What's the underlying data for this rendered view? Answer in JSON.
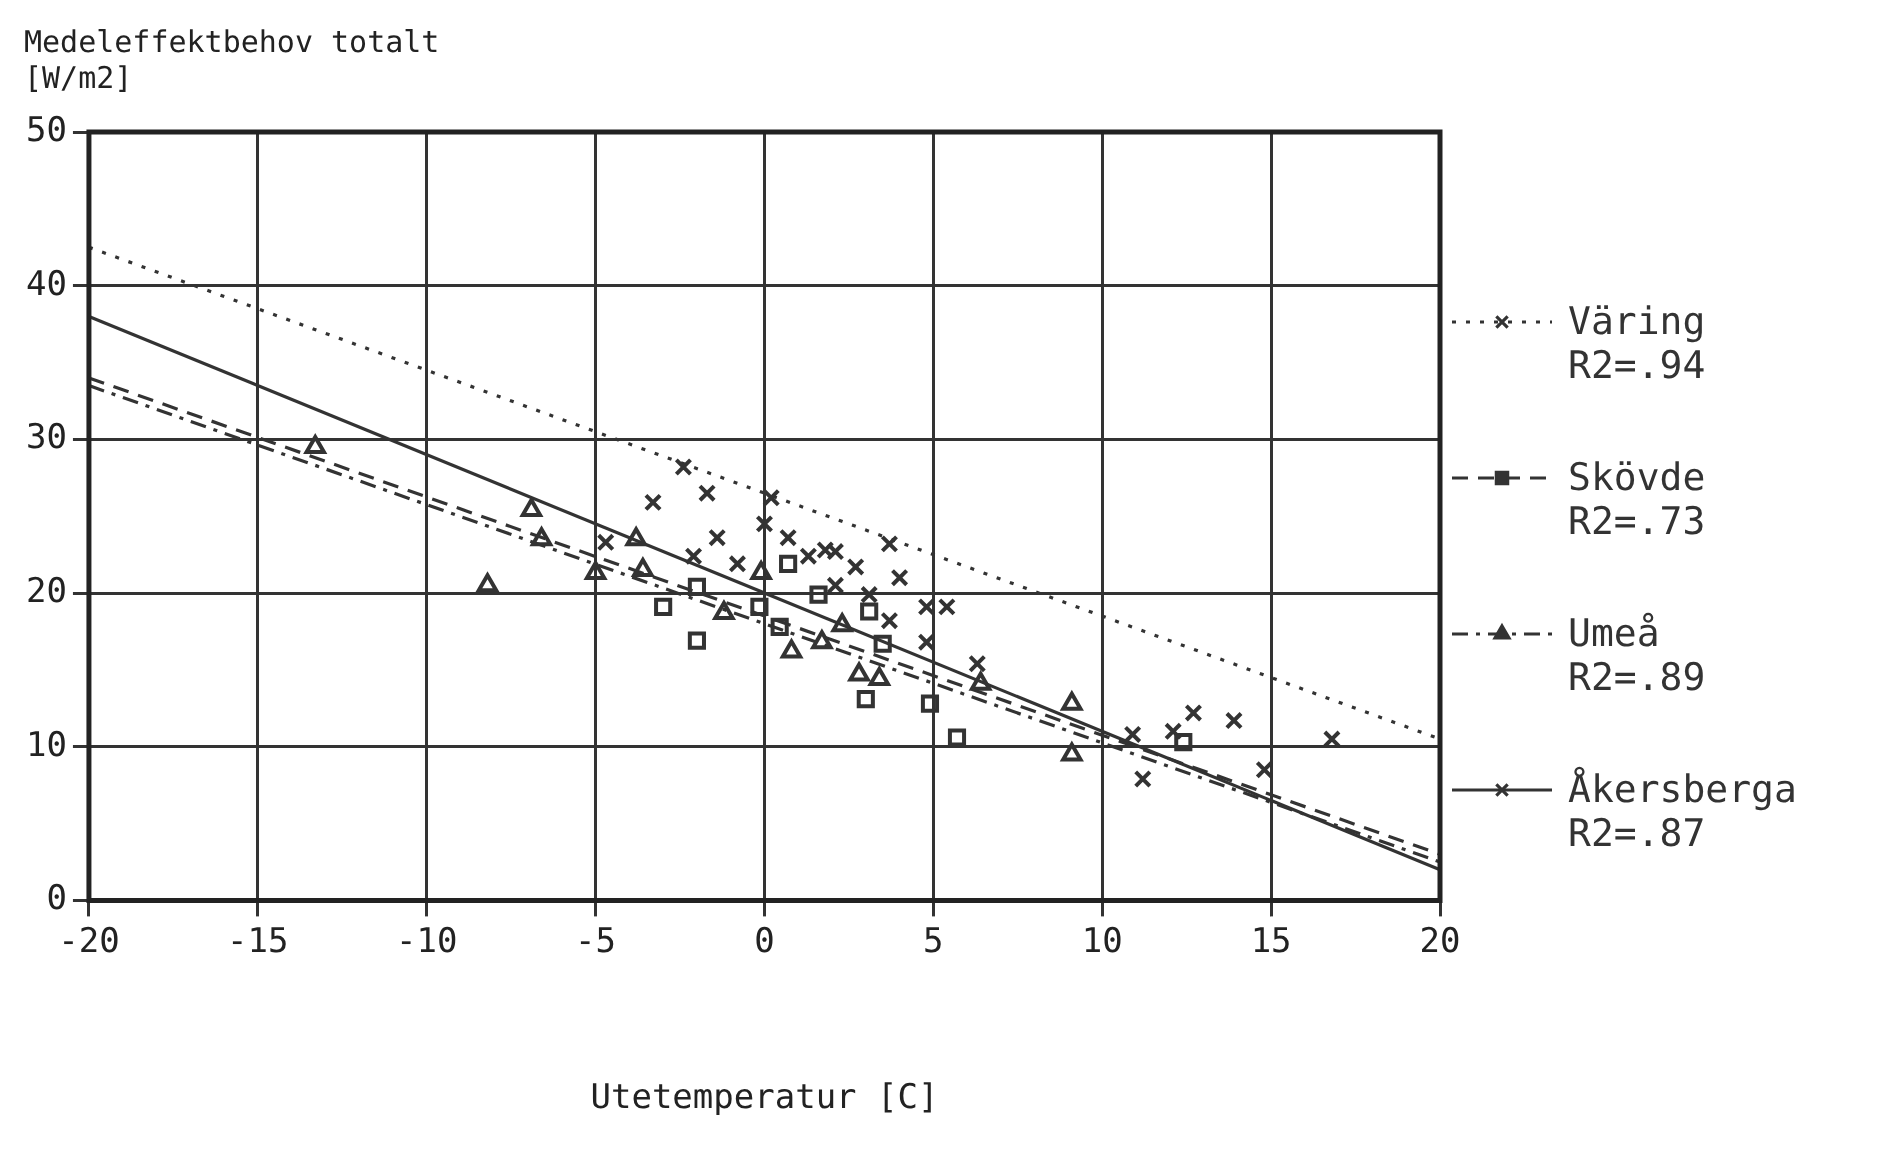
{
  "chart_data": {
    "type": "scatter",
    "ylabel": "Medeleffektbehov totalt [W/m2]",
    "xlabel": "Utetemperatur [C]",
    "xlim": [
      -20,
      20
    ],
    "xticks": [
      -20,
      -15,
      -10,
      -5,
      0,
      5,
      10,
      15,
      20
    ],
    "ylim": [
      0,
      50
    ],
    "yticks": [
      0,
      10,
      20,
      30,
      40,
      50
    ],
    "grid": true,
    "legend": "right",
    "series": [
      {
        "type": "scatter",
        "marker": "cross",
        "color": "#333333",
        "x": [
          -2.4,
          -1.7,
          -3.3,
          0.2,
          0,
          -1.4,
          0.7,
          1.8,
          1.3,
          2.1,
          3.7,
          2.7,
          -0.8,
          4.0,
          4.8,
          5.4,
          3.7,
          4.8,
          6.3,
          12.7,
          13.9,
          16.8,
          14.8,
          11.2
        ],
        "values": [
          28.2,
          26.5,
          25.9,
          26.2,
          24.5,
          23.6,
          23.6,
          22.8,
          22.4,
          22.7,
          23.2,
          21.7,
          21.9,
          21.0,
          19.1,
          19.1,
          18.2,
          16.8,
          15.4,
          12.2,
          11.7,
          10.5,
          8.5,
          7.9
        ]
      },
      {
        "type": "scatter",
        "marker": "square",
        "color": "#333333",
        "x": [
          0.7,
          -3.0,
          -2.0,
          -0.15,
          0.45,
          1.6,
          3.1,
          3.5,
          3.0,
          4.9,
          5.7,
          -2.0,
          12.4
        ],
        "values": [
          21.9,
          19.1,
          16.9,
          19.1,
          17.8,
          19.9,
          18.8,
          16.7,
          13.1,
          12.8,
          10.6,
          20.4,
          10.3
        ]
      },
      {
        "type": "scatter",
        "marker": "triangle",
        "color": "#333333",
        "x": [
          -6.9,
          -6.6,
          -8.2,
          -13.3,
          -5.0,
          -3.6,
          -3.8,
          -1.2,
          -0.1,
          0.8,
          1.7,
          2.8,
          3.4,
          2.3,
          9.1,
          9.1,
          6.4
        ],
        "values": [
          25.4,
          23.5,
          20.5,
          29.5,
          21.3,
          21.5,
          23.5,
          18.7,
          21.3,
          16.2,
          16.8,
          14.7,
          14.4,
          17.9,
          12.8,
          9.5,
          14.1
        ]
      },
      {
        "type": "scatter",
        "marker": "cross",
        "color": "#333333",
        "x": [
          -4.7,
          -2.1,
          2.1,
          3.1,
          10.9,
          12.1
        ],
        "values": [
          23.3,
          22.4,
          20.5,
          19.9,
          10.8,
          11.0
        ]
      },
      {
        "type": "line",
        "name": "Väring R2=.94",
        "line_style": "dotted",
        "color": "#333333",
        "x": [
          -20,
          20
        ],
        "values": [
          42.5,
          10.5
        ]
      },
      {
        "type": "line",
        "name": "Skövde R2=.73",
        "line_style": "dashed",
        "color": "#333333",
        "x": [
          -20,
          20
        ],
        "values": [
          34,
          3
        ]
      },
      {
        "type": "line",
        "name": "Umeå R2=.89",
        "line_style": "dashdot",
        "color": "#333333",
        "x": [
          -20,
          20
        ],
        "values": [
          33.5,
          2.5
        ]
      },
      {
        "type": "line",
        "name": "Åkersberga R2=.87",
        "line_style": "solid",
        "color": "#333333",
        "x": [
          -20,
          20
        ],
        "values": [
          38,
          2
        ]
      }
    ]
  }
}
